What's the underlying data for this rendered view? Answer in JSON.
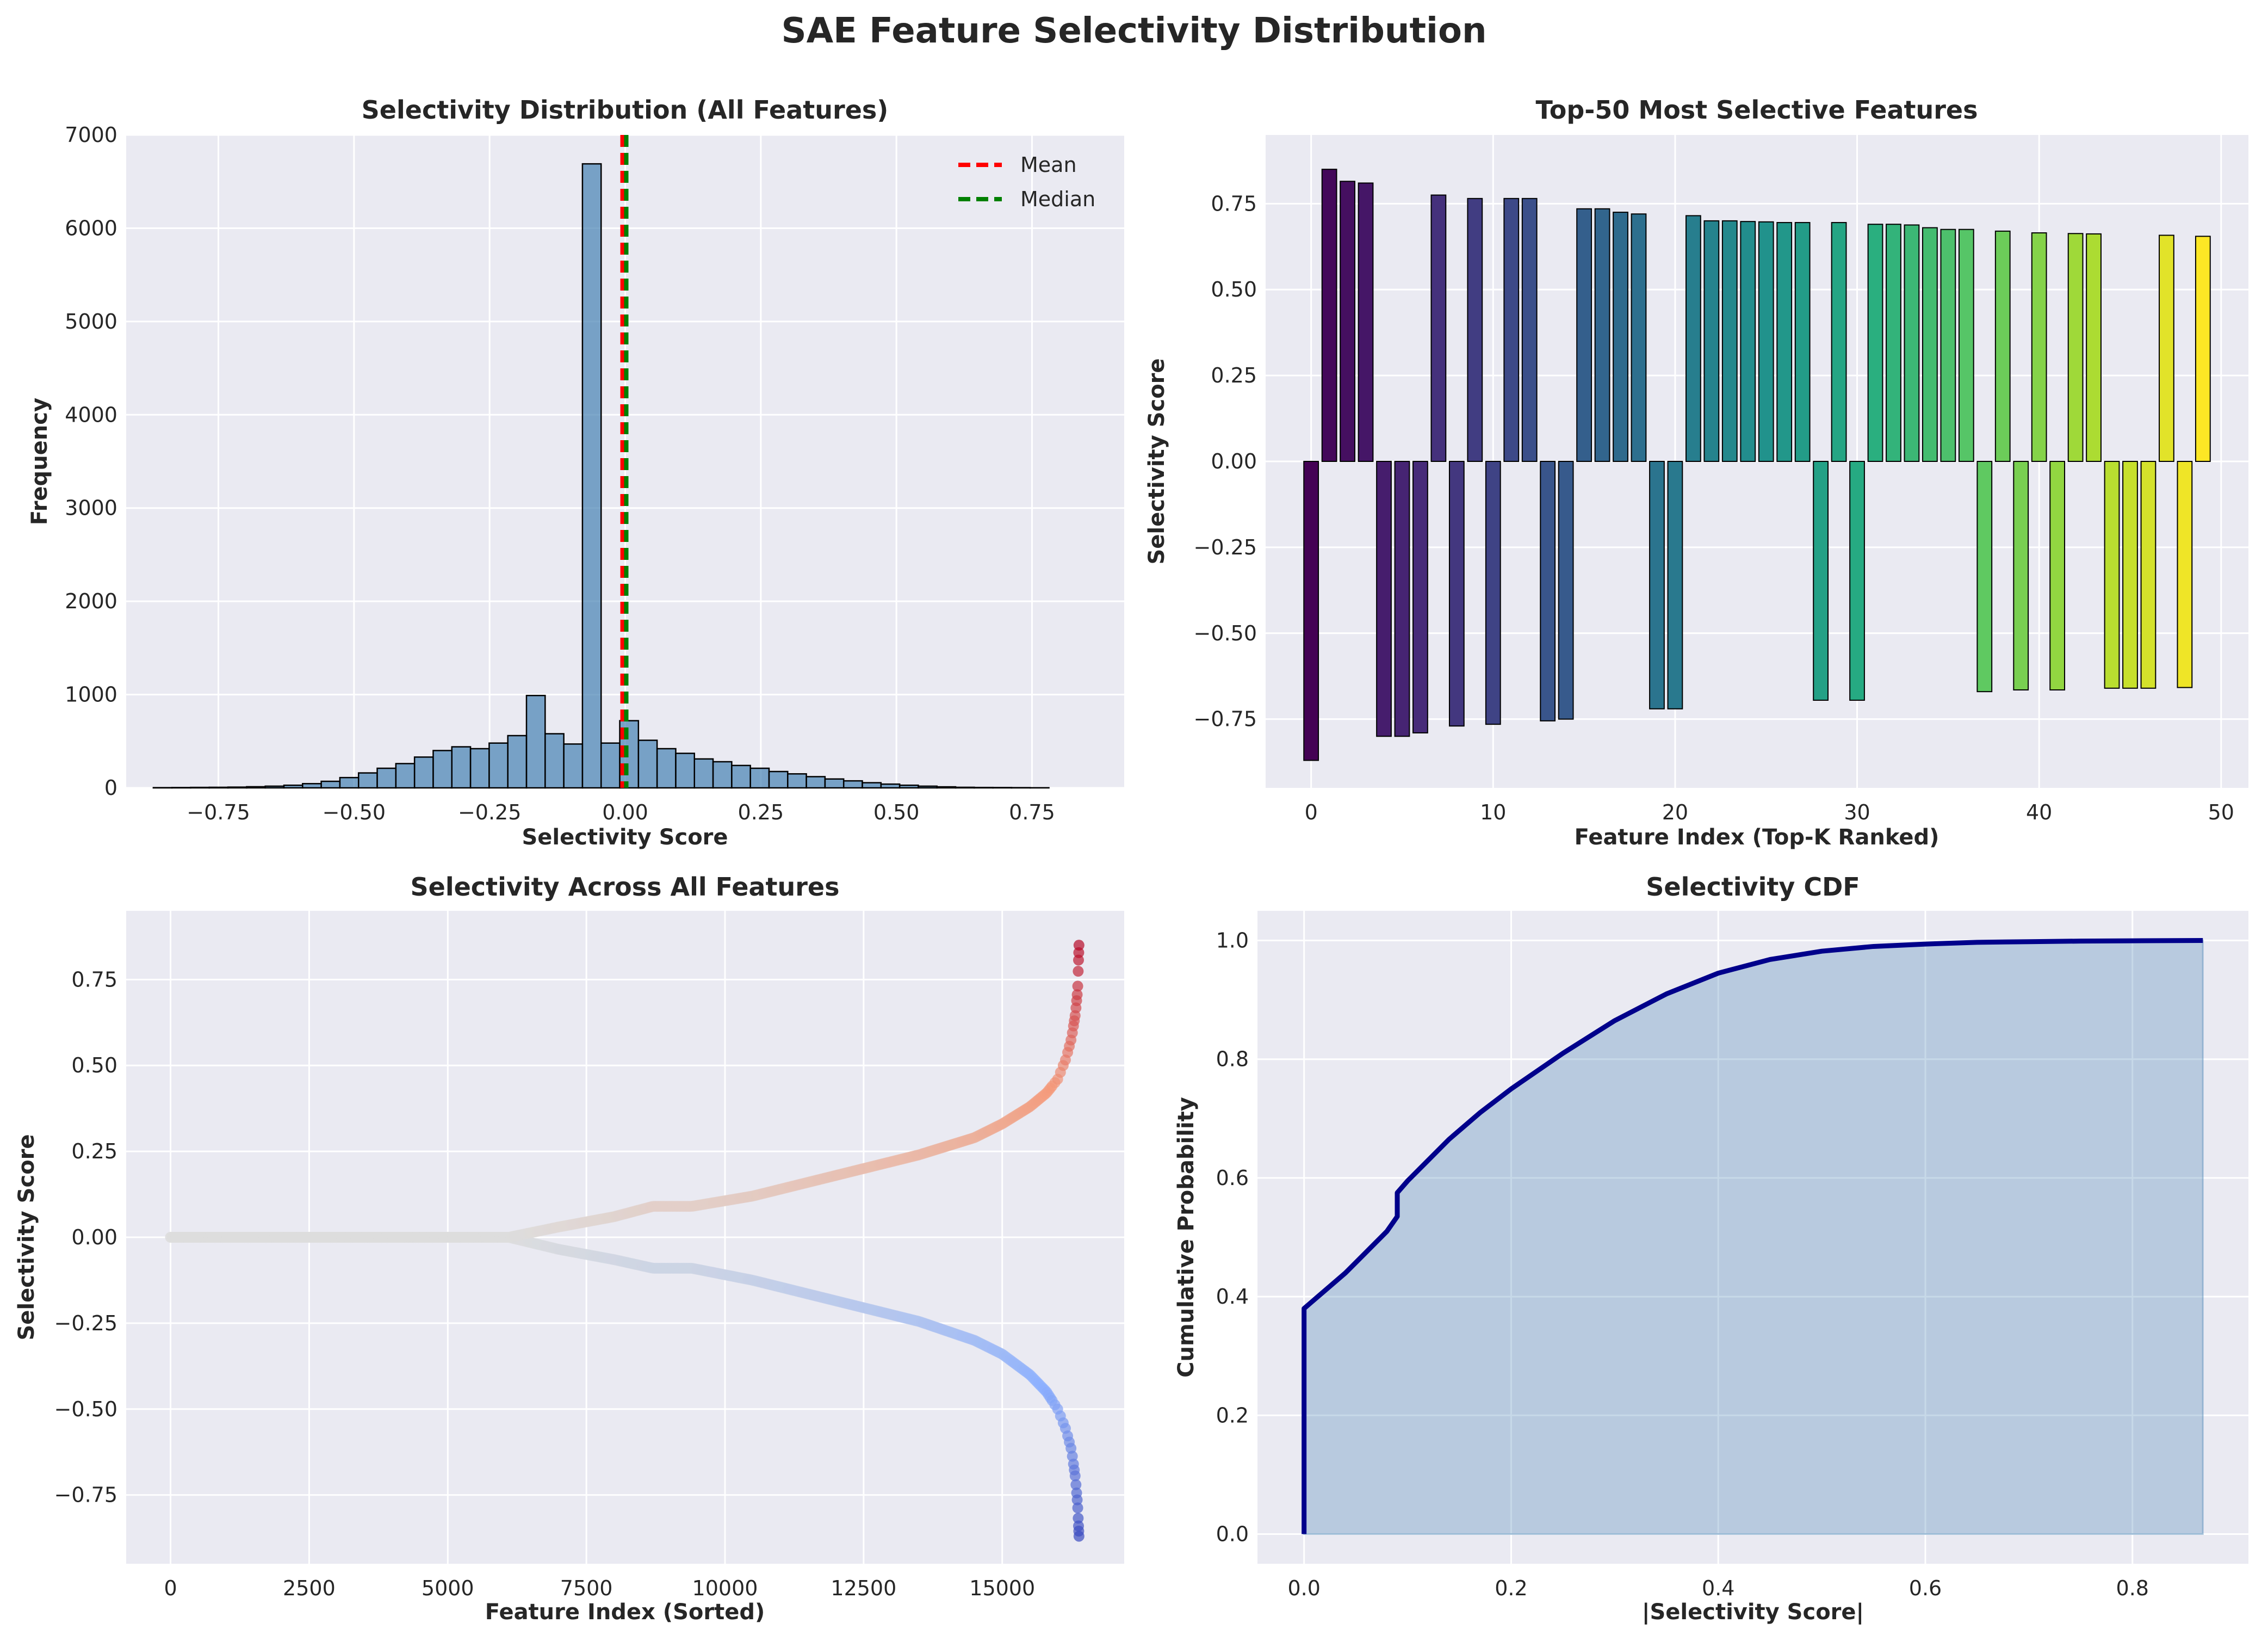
{
  "figure": {
    "title": "SAE Feature Selectivity Distribution"
  },
  "chart_data": [
    {
      "type": "histogram",
      "title": "Selectivity Distribution (All Features)",
      "xlabel": "Selectivity Score",
      "ylabel": "Frequency",
      "xlim": [
        -0.92,
        0.92
      ],
      "ylim": [
        0,
        7000
      ],
      "xticks": [
        -0.75,
        -0.5,
        -0.25,
        0.0,
        0.25,
        0.5,
        0.75
      ],
      "xtick_labels": [
        "−0.75",
        "−0.50",
        "−0.25",
        "0.00",
        "0.25",
        "0.50",
        "0.75"
      ],
      "yticks": [
        0,
        1000,
        2000,
        3000,
        4000,
        5000,
        6000,
        7000
      ],
      "ytick_labels": [
        "0",
        "1000",
        "2000",
        "3000",
        "4000",
        "5000",
        "6000",
        "7000"
      ],
      "bin_start": -0.87,
      "bin_width": 0.0344,
      "counts": [
        2,
        3,
        5,
        6,
        8,
        12,
        18,
        28,
        45,
        70,
        110,
        160,
        210,
        260,
        330,
        400,
        440,
        420,
        480,
        560,
        990,
        580,
        470,
        6690,
        480,
        720,
        510,
        420,
        370,
        310,
        280,
        240,
        210,
        175,
        150,
        120,
        95,
        75,
        55,
        40,
        28,
        18,
        11,
        6,
        4,
        3,
        2,
        1
      ],
      "bar_color": "#4682b4",
      "mean": -0.005,
      "median": 0.002,
      "legend": [
        {
          "label": "Mean",
          "color": "#ff0000"
        },
        {
          "label": "Median",
          "color": "#008000"
        }
      ]
    },
    {
      "type": "bar",
      "title": "Top-50 Most Selective Features",
      "xlabel": "Feature Index (Top-K Ranked)",
      "ylabel": "Selectivity Score",
      "xlim": [
        -2.5,
        51.5
      ],
      "ylim": [
        -0.95,
        0.95
      ],
      "xticks": [
        0,
        10,
        20,
        30,
        40,
        50
      ],
      "xtick_labels": [
        "0",
        "10",
        "20",
        "30",
        "40",
        "50"
      ],
      "yticks": [
        -0.75,
        -0.5,
        -0.25,
        0.0,
        0.25,
        0.5,
        0.75
      ],
      "ytick_labels": [
        "−0.75",
        "−0.50",
        "−0.25",
        "0.00",
        "0.25",
        "0.50",
        "0.75"
      ],
      "colormap": "viridis",
      "values": [
        -0.87,
        0.85,
        0.815,
        0.81,
        -0.8,
        -0.8,
        -0.79,
        0.775,
        -0.77,
        0.765,
        -0.765,
        0.765,
        0.765,
        -0.755,
        -0.75,
        0.735,
        0.735,
        0.725,
        0.72,
        -0.72,
        -0.72,
        0.715,
        0.7,
        0.7,
        0.698,
        0.697,
        0.695,
        0.695,
        -0.695,
        0.695,
        -0.695,
        0.69,
        0.69,
        0.688,
        0.68,
        0.675,
        0.675,
        -0.67,
        0.67,
        -0.665,
        0.665,
        -0.665,
        0.663,
        0.662,
        -0.66,
        -0.66,
        -0.66,
        0.658,
        -0.658,
        0.655
      ]
    },
    {
      "type": "scatter",
      "title": "Selectivity Across All Features",
      "xlabel": "Feature Index (Sorted)",
      "ylabel": "Selectivity Score",
      "xlim": [
        -800,
        17200
      ],
      "ylim": [
        -0.95,
        0.95
      ],
      "xticks": [
        0,
        2500,
        5000,
        7500,
        10000,
        12500,
        15000
      ],
      "xtick_labels": [
        "0",
        "2500",
        "5000",
        "7500",
        "10000",
        "12500",
        "15000"
      ],
      "yticks": [
        -0.75,
        -0.5,
        -0.25,
        0.0,
        0.25,
        0.5,
        0.75
      ],
      "ytick_labels": [
        "−0.75",
        "−0.50",
        "−0.25",
        "0.00",
        "0.25",
        "0.50",
        "0.75"
      ],
      "colormap": "coolwarm",
      "n_features": 16384,
      "series": [
        {
          "name": "positive",
          "x": [
            0,
            6100,
            7000,
            8000,
            8700,
            9400,
            10500,
            11500,
            12500,
            13500,
            14500,
            15000,
            15500,
            15800,
            16000,
            16150,
            16250,
            16320,
            16360,
            16384
          ],
          "y": [
            0,
            0,
            0.03,
            0.06,
            0.09,
            0.09,
            0.12,
            0.16,
            0.2,
            0.24,
            0.29,
            0.33,
            0.38,
            0.42,
            0.46,
            0.52,
            0.58,
            0.65,
            0.72,
            0.85
          ]
        },
        {
          "name": "negative",
          "x": [
            0,
            6100,
            7000,
            8000,
            8700,
            9400,
            10500,
            11500,
            12500,
            13500,
            14500,
            15000,
            15500,
            15800,
            16000,
            16150,
            16250,
            16320,
            16360,
            16384
          ],
          "y": [
            0,
            0,
            -0.035,
            -0.065,
            -0.09,
            -0.09,
            -0.125,
            -0.165,
            -0.205,
            -0.245,
            -0.3,
            -0.34,
            -0.4,
            -0.45,
            -0.5,
            -0.56,
            -0.62,
            -0.7,
            -0.78,
            -0.87
          ]
        }
      ]
    },
    {
      "type": "area",
      "title": "Selectivity CDF",
      "xlabel": "|Selectivity Score|",
      "ylabel": "Cumulative Probability",
      "xlim": [
        -0.045,
        0.912
      ],
      "ylim": [
        -0.05,
        1.05
      ],
      "xticks": [
        0.0,
        0.2,
        0.4,
        0.6,
        0.8
      ],
      "xtick_labels": [
        "0.0",
        "0.2",
        "0.4",
        "0.6",
        "0.8"
      ],
      "yticks": [
        0.0,
        0.2,
        0.4,
        0.6,
        0.8,
        1.0
      ],
      "ytick_labels": [
        "0.0",
        "0.2",
        "0.4",
        "0.6",
        "0.8",
        "1.0"
      ],
      "line_color": "#00008b",
      "fill_color": "#4682b4",
      "x": [
        0,
        0,
        0.02,
        0.04,
        0.06,
        0.08,
        0.09,
        0.09,
        0.1,
        0.12,
        0.14,
        0.17,
        0.2,
        0.25,
        0.3,
        0.35,
        0.4,
        0.45,
        0.5,
        0.55,
        0.6,
        0.65,
        0.7,
        0.75,
        0.8,
        0.868
      ],
      "y": [
        0,
        0.38,
        0.41,
        0.44,
        0.475,
        0.51,
        0.535,
        0.575,
        0.595,
        0.63,
        0.665,
        0.71,
        0.75,
        0.81,
        0.865,
        0.91,
        0.945,
        0.968,
        0.982,
        0.99,
        0.994,
        0.997,
        0.998,
        0.999,
        0.9995,
        1.0
      ]
    }
  ]
}
